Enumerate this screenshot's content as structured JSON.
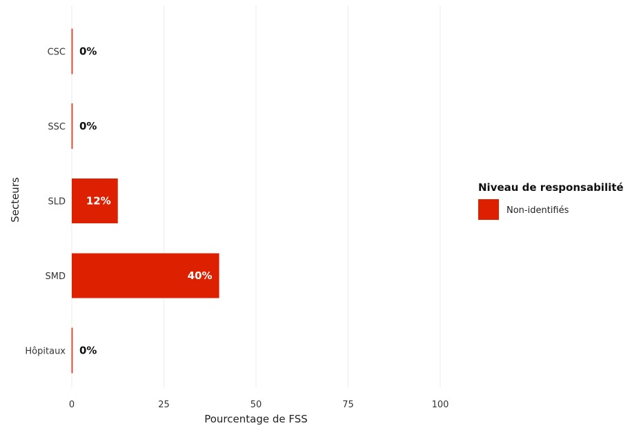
{
  "chart_data": {
    "type": "bar",
    "orientation": "horizontal",
    "categories": [
      "CSC",
      "SSC",
      "SLD",
      "SMD",
      "Hôpitaux"
    ],
    "series": [
      {
        "name": "Non-identifiés",
        "values": [
          0,
          0,
          12.5,
          40,
          0
        ],
        "labels": [
          "0%",
          "0%",
          "12%",
          "40%",
          "0%"
        ],
        "color": "#dd2000"
      }
    ],
    "xlabel": "Pourcentage de FSS",
    "ylabel": "Secteurs",
    "xlim": [
      0,
      100
    ],
    "xticks": [
      0,
      25,
      50,
      75,
      100
    ],
    "xtick_labels": [
      "0",
      "25",
      "50",
      "75",
      "100"
    ],
    "grid": "vertical",
    "legend": {
      "title": "Niveau de responsabilité",
      "position": "right",
      "items": [
        "Non-identifiés"
      ]
    }
  }
}
